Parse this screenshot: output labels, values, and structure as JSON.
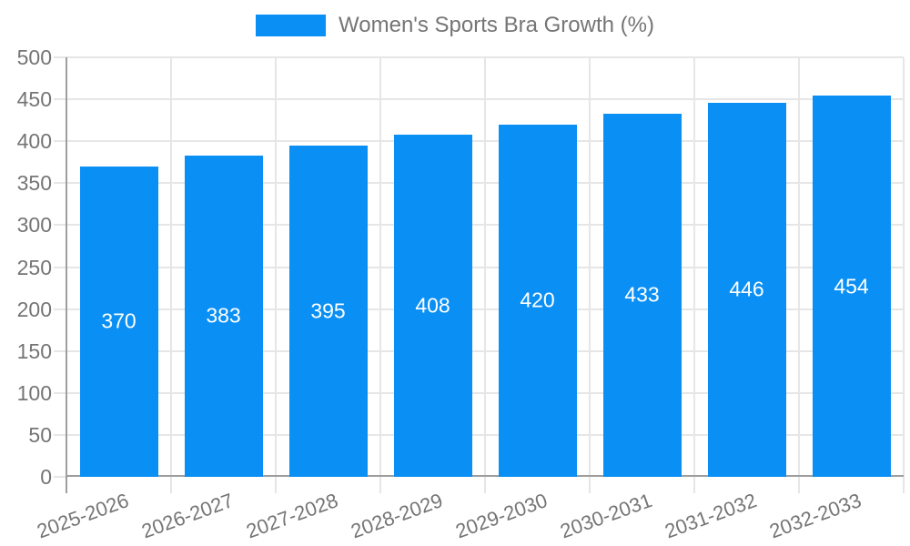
{
  "colors": {
    "bar": "#0A8FF5",
    "grid": "#E6E6E6",
    "axis": "#9E9E9E",
    "text": "#757575",
    "value_label": "#FFFFFF"
  },
  "chart_data": {
    "type": "bar",
    "title": "Women's Sports Bra Growth (%)",
    "legend": {
      "position": "top",
      "label": "Women's Sports Bra Growth (%)"
    },
    "categories": [
      "2025-2026",
      "2026-2027",
      "2027-2028",
      "2028-2029",
      "2029-2030",
      "2030-2031",
      "2031-2032",
      "2032-2033"
    ],
    "values": [
      370,
      383,
      395,
      408,
      420,
      433,
      446,
      454
    ],
    "xlabel": "",
    "ylabel": "",
    "ylim": [
      0,
      500
    ],
    "ytick_step": 50,
    "grid": true,
    "legend_position": "top"
  }
}
